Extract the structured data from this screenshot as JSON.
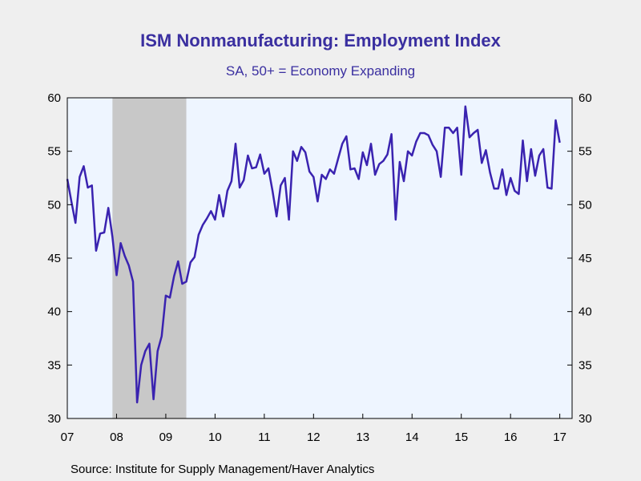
{
  "chart_data": {
    "type": "line",
    "title": "ISM Nonmanufacturing: Employment Index",
    "subtitle": "SA, 50+ = Economy Expanding",
    "source": "Source:  Institute for Supply Management/Haver Analytics",
    "xlabel": "",
    "ylabel": "",
    "ylim": [
      30,
      60
    ],
    "xlim": [
      "2007-01",
      "2017-04"
    ],
    "y_ticks": [
      "30",
      "35",
      "40",
      "45",
      "50",
      "55",
      "60"
    ],
    "x_ticks": [
      "07",
      "08",
      "09",
      "10",
      "11",
      "12",
      "13",
      "14",
      "15",
      "16",
      "17"
    ],
    "grid": false,
    "recession_band": {
      "start": "2007-12",
      "end": "2009-06",
      "color": "#c8c8c8"
    },
    "plot_background": "#eef5ff",
    "line_color": "#3a23b0",
    "series": [
      {
        "start": "2007-01",
        "values": [
          52.4,
          50.3,
          48.3,
          52.6,
          53.6,
          51.6,
          51.8,
          45.7,
          47.3,
          47.4,
          49.7,
          47.0,
          43.4,
          46.4,
          45.2,
          44.3,
          42.8,
          31.5,
          35.0,
          36.3,
          37.0,
          31.8,
          36.3,
          37.7,
          41.5,
          41.3,
          43.3,
          44.7,
          42.6,
          42.8,
          44.6,
          45.1,
          47.2,
          48.1,
          48.7,
          49.4,
          48.6,
          50.9,
          48.9,
          51.3,
          52.2,
          55.7,
          51.6,
          52.3,
          54.6,
          53.4,
          53.5,
          54.7,
          52.9,
          53.4,
          51.3,
          48.9,
          51.8,
          52.5,
          48.6,
          55.0,
          54.1,
          55.4,
          54.9,
          53.1,
          52.6,
          50.3,
          52.8,
          52.4,
          53.3,
          52.9,
          54.3,
          55.7,
          56.4,
          53.3,
          53.4,
          52.4,
          54.9,
          53.7,
          55.7,
          52.8,
          53.8,
          54.1,
          54.7,
          56.6,
          48.6,
          54.0,
          52.2,
          55.0,
          54.6,
          55.9,
          56.7,
          56.7,
          56.5,
          55.6,
          55.0,
          52.6,
          57.2,
          57.2,
          56.7,
          57.2,
          52.8,
          59.2,
          56.3,
          56.7,
          57.0,
          53.9,
          55.1,
          53.0,
          51.5,
          51.5,
          53.3,
          50.9,
          52.5,
          51.3,
          51.0,
          56.0,
          52.2,
          55.2,
          52.7,
          54.6,
          55.2,
          51.6,
          51.5,
          57.9,
          55.8
        ]
      }
    ]
  }
}
